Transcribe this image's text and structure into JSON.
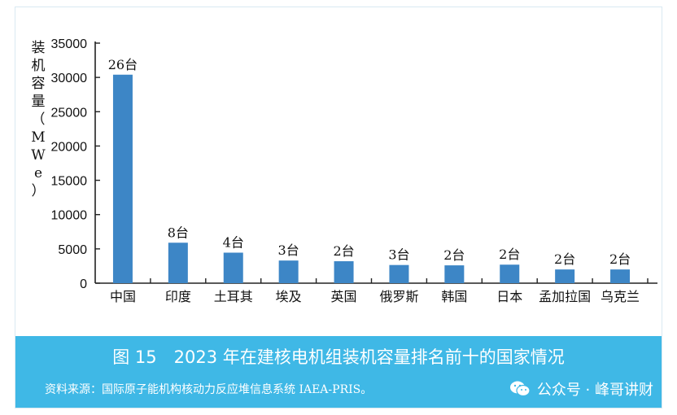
{
  "chart_data": {
    "type": "bar",
    "title": "",
    "ylabel": "装机容量（MWe）",
    "ylabel_chars": [
      "装",
      "机",
      "容",
      "量",
      "（",
      "M",
      "W",
      "e",
      "）"
    ],
    "xlabel": "",
    "ylim": [
      0,
      35000
    ],
    "yticks": [
      0,
      5000,
      10000,
      15000,
      20000,
      25000,
      30000,
      35000
    ],
    "categories": [
      "中国",
      "印度",
      "土耳其",
      "埃及",
      "英国",
      "俄罗斯",
      "韩国",
      "日本",
      "孟加拉国",
      "乌克兰"
    ],
    "values": [
      30400,
      5900,
      4450,
      3300,
      3200,
      2650,
      2600,
      2700,
      2000,
      2000
    ],
    "labels": [
      "26台",
      "8台",
      "4台",
      "3台",
      "2台",
      "3台",
      "2台",
      "2台",
      "2台",
      "2台"
    ]
  },
  "colors": {
    "bar": "#3d86c6",
    "banner": "#3fb8e6",
    "axis": "#222222"
  },
  "caption": "图 15　2023 年在建核电机组装机容量排名前十的国家情况",
  "source": "资料来源：国际原子能机构核动力反应堆信息系统 IAEA-PRIS。",
  "watermark": {
    "text": "公众号 · 峰哥讲财",
    "icon": "wechat-icon"
  }
}
